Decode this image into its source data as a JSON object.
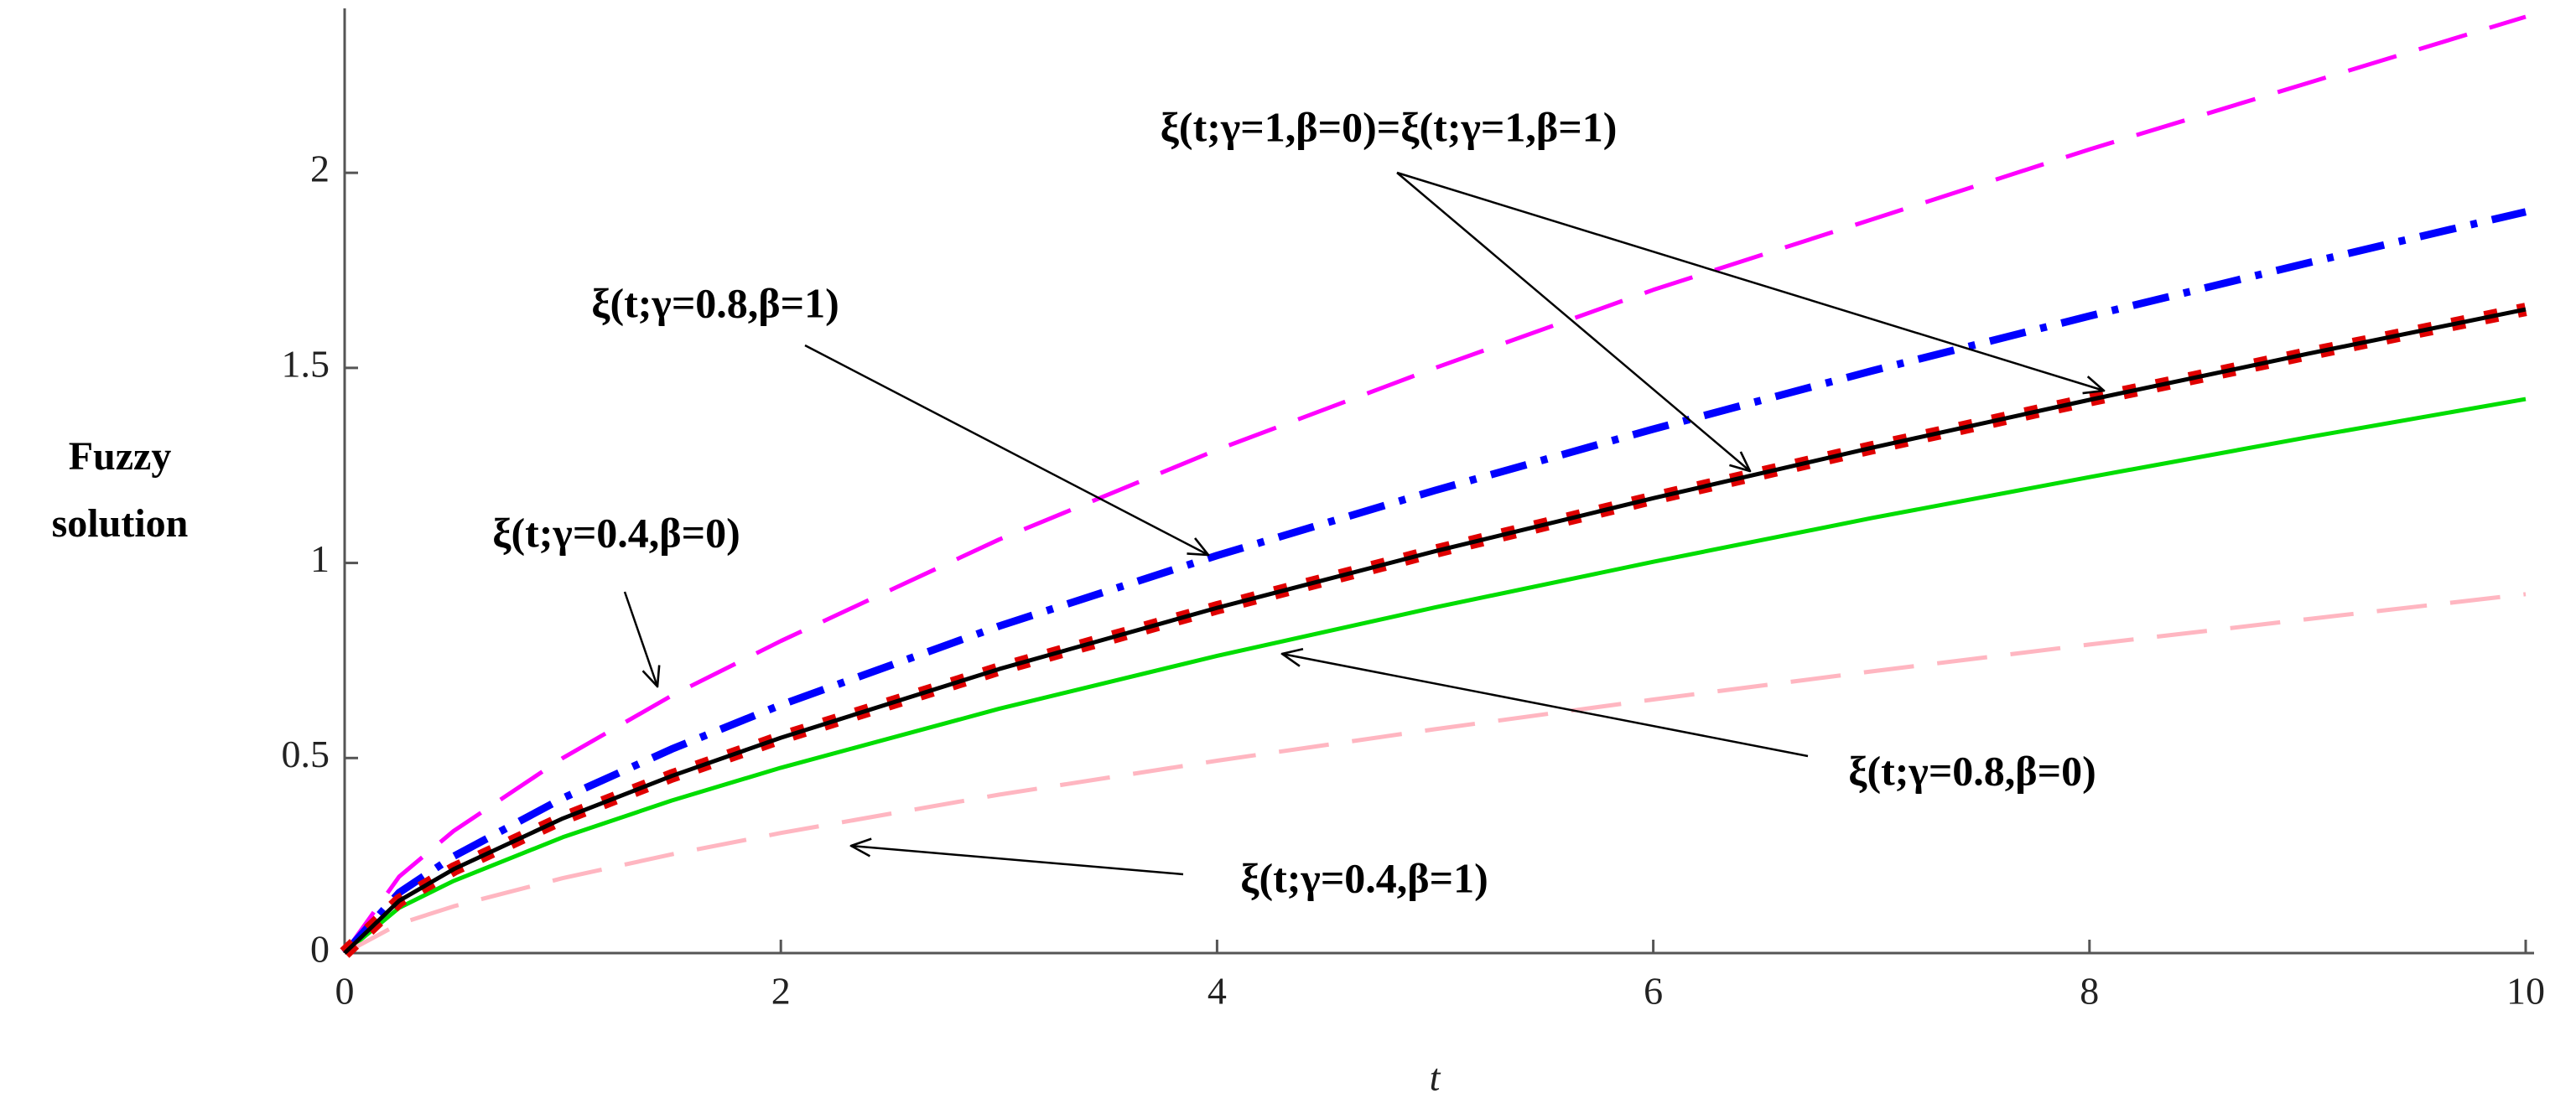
{
  "chart_data": {
    "type": "line",
    "xlabel": "t",
    "ylabel": "Fuzzy solution",
    "x": [
      0,
      0.25,
      0.5,
      1,
      1.5,
      2,
      3,
      4,
      5,
      6,
      7,
      8,
      9,
      10
    ],
    "series": [
      {
        "color": "#ff00ff",
        "dash": "dashed",
        "values": [
          0,
          0.196,
          0.313,
          0.5,
          0.66,
          0.8,
          1.06,
          1.29,
          1.5,
          1.7,
          1.88,
          2.06,
          2.23,
          2.4
        ]
      },
      {
        "color": "#0000ff",
        "dash": "dashdot",
        "values": [
          0,
          0.155,
          0.248,
          0.397,
          0.523,
          0.636,
          0.838,
          1.019,
          1.186,
          1.343,
          1.492,
          1.633,
          1.769,
          1.9
        ]
      },
      {
        "color": "#00dd00",
        "dash": "solid",
        "values": [
          0,
          0.116,
          0.185,
          0.297,
          0.391,
          0.475,
          0.626,
          0.762,
          0.886,
          1.003,
          1.115,
          1.22,
          1.322,
          1.42
        ]
      },
      {
        "color": "#ffb6c1",
        "dash": "dashed",
        "values": [
          0,
          0.075,
          0.12,
          0.192,
          0.253,
          0.308,
          0.406,
          0.493,
          0.574,
          0.65,
          0.722,
          0.791,
          0.856,
          0.92
        ]
      },
      {
        "color": "#e00000",
        "dash": "dot",
        "values": [
          0,
          0.134,
          0.215,
          0.345,
          0.454,
          0.552,
          0.728,
          0.885,
          1.03,
          1.166,
          1.295,
          1.418,
          1.536,
          1.65
        ]
      },
      {
        "color": "#000000",
        "dash": "solid",
        "values": [
          0,
          0.134,
          0.215,
          0.345,
          0.454,
          0.552,
          0.728,
          0.885,
          1.03,
          1.166,
          1.295,
          1.418,
          1.536,
          1.65
        ]
      }
    ],
    "xlim": [
      0,
      10
    ],
    "xticks": [
      0,
      2,
      4,
      6,
      8,
      10
    ],
    "ylim": [
      0,
      2.4
    ],
    "yticks": [
      0,
      0.5,
      1,
      1.5,
      2
    ],
    "grid": false,
    "annotations": [
      "ξ(t;γ=1,β=0)=ξ(t;γ=1,β=1)",
      "ξ(t;γ=0.8,β=1)",
      "ξ(t;γ=0.4,β=0)",
      "ξ(t;γ=0.8,β=0)",
      "ξ(t;γ=0.4,β=1)"
    ]
  }
}
